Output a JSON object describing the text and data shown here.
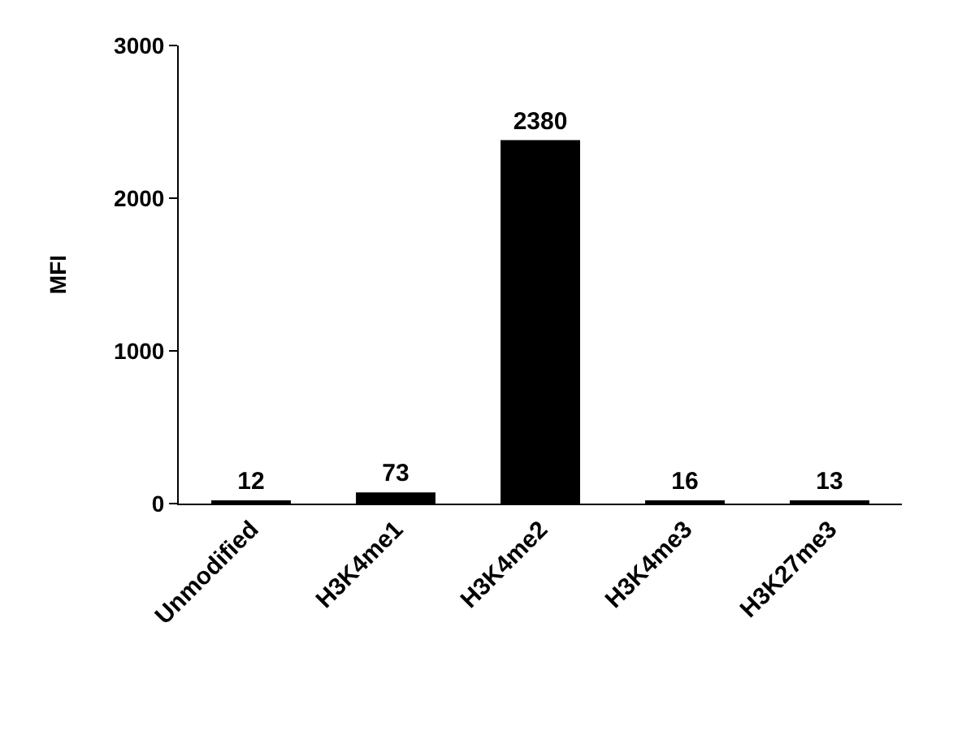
{
  "chart_data": {
    "type": "bar",
    "ylabel": "MFI",
    "categories": [
      "Unmodified",
      "H3K4me1",
      "H3K4me2",
      "H3K4me3",
      "H3K27me3"
    ],
    "values": [
      12,
      73,
      2380,
      16,
      13
    ],
    "color": "#000000",
    "ylim": [
      0,
      3000
    ],
    "yticks": [
      0,
      1000,
      2000,
      3000
    ],
    "data_labels": true,
    "grid": false,
    "legend": false
  }
}
